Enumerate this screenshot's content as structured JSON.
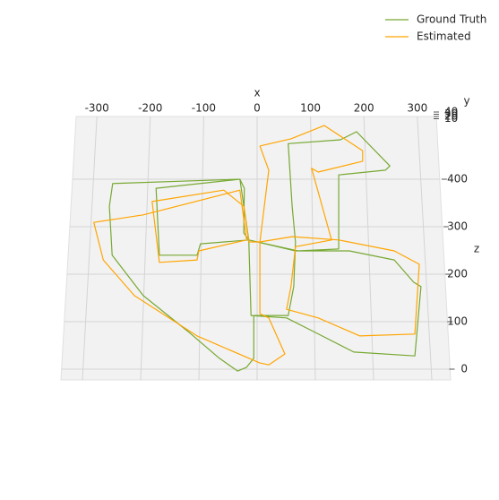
{
  "chart_data": {
    "type": "line3d",
    "xlabel": "x",
    "ylabel": "y",
    "zlabel": "z",
    "xlim": [
      -350,
      350
    ],
    "zlim": [
      -20,
      530
    ],
    "ylim": [
      0,
      40
    ],
    "xticks": [
      -300,
      -200,
      -100,
      0,
      100,
      200,
      300
    ],
    "yticks": [
      10,
      20,
      30,
      40
    ],
    "zticks": [
      0,
      100,
      200,
      300,
      400
    ],
    "grid": true,
    "legend": "upper right",
    "series": [
      {
        "name": "Ground Truth",
        "color": "#77a832",
        "x": [
          -6,
          56,
          66,
          69,
          63,
          56,
          150,
          179,
          239,
          231,
          147,
          147,
          73,
          -15,
          -102,
          -108,
          -176,
          -182,
          -31,
          -23,
          -24,
          -15,
          -11,
          53,
          102,
          174,
          284,
          295,
          282,
          247,
          166,
          69,
          -15,
          -31,
          -260,
          -266,
          -261,
          -205,
          -124,
          -68,
          -35,
          -19,
          -6,
          -6
        ],
        "values": [
          113,
          113,
          174,
          268,
          343,
          475,
          483,
          500,
          428,
          419,
          409,
          253,
          249,
          272,
          264,
          240,
          240,
          381,
          400,
          381,
          287,
          272,
          113,
          108,
          79,
          36,
          28,
          174,
          183,
          230,
          249,
          249,
          272,
          400,
          391,
          343,
          240,
          155,
          79,
          23,
          -4,
          4,
          23,
          113
        ]
      },
      {
        "name": "Estimated",
        "color": "#ffa500",
        "x": [
          5,
          61,
          121,
          190,
          190,
          110,
          98,
          134,
          69,
          61,
          53,
          110,
          185,
          284,
          292,
          247,
          147,
          63,
          5,
          -15,
          -24,
          -60,
          -189,
          -176,
          -108,
          -105,
          -19,
          -31,
          -205,
          -294,
          -277,
          -221,
          -108,
          5,
          21,
          50,
          21,
          5,
          5,
          21,
          5
        ],
        "values": [
          470,
          485,
          513,
          460,
          438,
          415,
          423,
          272,
          258,
          174,
          126,
          108,
          70,
          74,
          221,
          249,
          272,
          279,
          268,
          268,
          343,
          377,
          353,
          225,
          230,
          249,
          272,
          377,
          325,
          309,
          230,
          155,
          70,
          13,
          9,
          32,
          108,
          117,
          268,
          419,
          470
        ]
      }
    ]
  }
}
